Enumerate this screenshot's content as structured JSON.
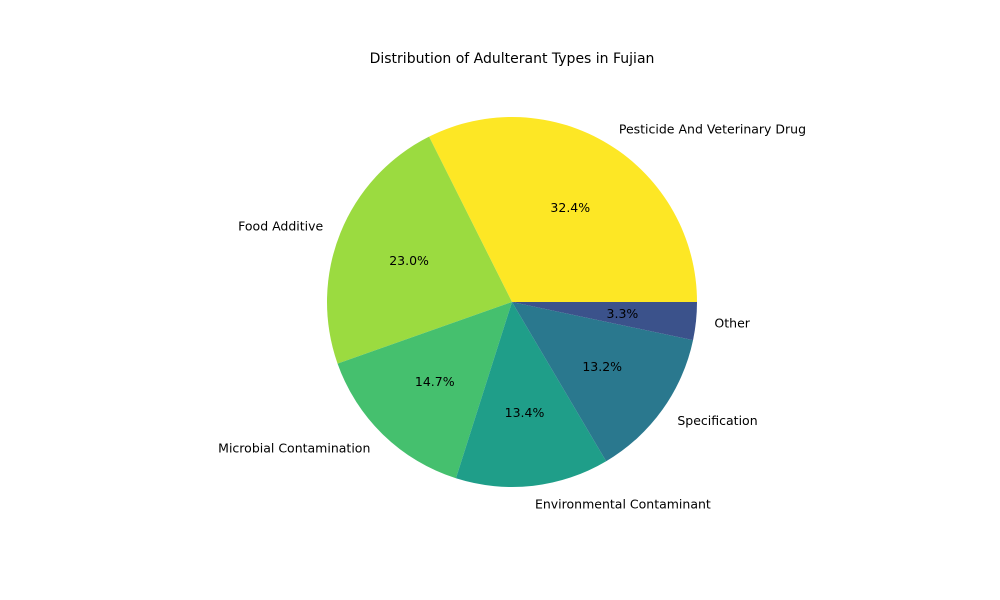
{
  "chart_data": {
    "type": "pie",
    "title": "Distribution of Adulterant Types in Fujian",
    "categories": [
      "Pesticide And Veterinary Drug",
      "Food Additive",
      "Microbial Contamination",
      "Environmental Contaminant",
      "Specification",
      "Other"
    ],
    "values": [
      32.4,
      23.0,
      14.7,
      13.4,
      13.2,
      3.3
    ],
    "percent_labels": [
      "32.4%",
      "23.0%",
      "14.7%",
      "13.4%",
      "13.2%",
      "3.3%"
    ],
    "colors": [
      "#fde725",
      "#9bdb40",
      "#45c06e",
      "#1f9e89",
      "#2a788e",
      "#3b528b"
    ],
    "start_angle_deg": 0,
    "direction": "counterclockwise",
    "legend": "none"
  }
}
